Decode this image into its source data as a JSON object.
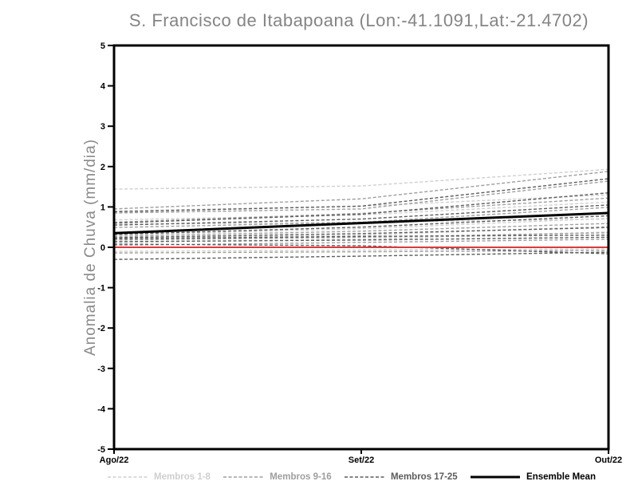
{
  "chart_data": {
    "type": "line",
    "title": "S. Francisco de Itabapoana (Lon:-41.1091,Lat:-21.4702)",
    "xlabel": "",
    "ylabel": "Anomalia de Chuva (mm/dia)",
    "x_tick_labels": [
      "Ago/22",
      "Set/22",
      "Out/22"
    ],
    "y_ticks": [
      5,
      4,
      3,
      2,
      1,
      0,
      -1,
      -2,
      -3,
      -4,
      -5
    ],
    "ylim": [
      -5,
      5
    ],
    "grid": false,
    "legend_position": "bottom",
    "frame_color": "#000000",
    "groups": [
      {
        "name": "Membros 1-8",
        "color": "#cfcfcf",
        "dashed": true,
        "members": [
          [
            1.44,
            1.52,
            1.93
          ],
          [
            0.9,
            1.02,
            1.3
          ],
          [
            0.68,
            0.8,
            1.12
          ],
          [
            0.3,
            0.46,
            0.72
          ],
          [
            0.22,
            0.3,
            0.52
          ],
          [
            0.12,
            0.2,
            0.38
          ],
          [
            0.57,
            0.62,
            0.7
          ],
          [
            -0.1,
            -0.07,
            -0.04
          ]
        ]
      },
      {
        "name": "Membros 9-16",
        "color": "#9e9e9e",
        "dashed": true,
        "members": [
          [
            0.95,
            1.2,
            1.88
          ],
          [
            0.85,
            0.95,
            1.64
          ],
          [
            0.62,
            0.84,
            1.22
          ],
          [
            0.49,
            0.62,
            0.99
          ],
          [
            0.27,
            0.4,
            0.59
          ],
          [
            0.18,
            0.25,
            0.36
          ],
          [
            0.05,
            0.12,
            0.2
          ],
          [
            -0.14,
            -0.11,
            -0.08
          ]
        ]
      },
      {
        "name": "Membros 17-25",
        "color": "#5c5c5c",
        "dashed": true,
        "members": [
          [
            0.88,
            1.02,
            1.7
          ],
          [
            0.6,
            0.82,
            1.35
          ],
          [
            0.55,
            0.7,
            1.05
          ],
          [
            0.32,
            0.5,
            0.78
          ],
          [
            0.24,
            0.34,
            0.49
          ],
          [
            0.21,
            0.27,
            0.3
          ],
          [
            0.14,
            0.18,
            0.25
          ],
          [
            0.08,
            0.04,
            -0.16
          ],
          [
            -0.3,
            -0.22,
            -0.12
          ]
        ]
      }
    ],
    "ensemble_mean": {
      "name": "Ensemble Mean",
      "color": "#000000",
      "values": [
        0.35,
        0.6,
        0.85
      ]
    },
    "zero_line": {
      "value": 0,
      "color": "#dc3b3b"
    }
  }
}
